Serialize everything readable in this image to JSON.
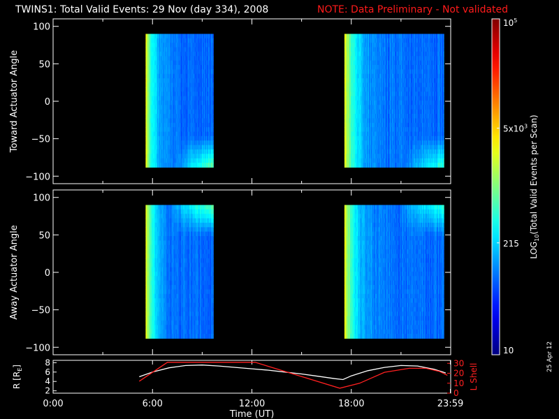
{
  "title": {
    "main": "TWINS1: Total Valid Events: 29 Nov (day 334), 2008",
    "note": "NOTE: Data Preliminary - Not validated"
  },
  "stamp": "25 Apr 12",
  "colors": {
    "background": "#000000",
    "axis": "#ffffff",
    "note": "#ff1b1b",
    "lshell": "#ff2020",
    "radius": "#ffffff"
  },
  "chart_data": [
    {
      "type": "heatmap",
      "name": "toward-panel",
      "ylabel": "Toward Actuator Angle",
      "ylim": [
        -110,
        110
      ],
      "yticks": [
        "100",
        "50",
        "0",
        "−50",
        "−100"
      ],
      "ytick_values": [
        100,
        50,
        0,
        -50,
        -100
      ],
      "xlim_hours": [
        0,
        24
      ],
      "angle_range": [
        -88,
        90
      ],
      "data_blocks_ut": [
        {
          "start": "5:35",
          "end": "9:40"
        },
        {
          "start": "17:35",
          "end": "23:35"
        }
      ]
    },
    {
      "type": "heatmap",
      "name": "away-panel",
      "ylabel": "Away Actuator Angle",
      "ylim": [
        -110,
        110
      ],
      "yticks": [
        "100",
        "50",
        "0",
        "−50",
        "−100"
      ],
      "ytick_values": [
        100,
        50,
        0,
        -50,
        -100
      ],
      "xlim_hours": [
        0,
        24
      ],
      "angle_range": [
        -88,
        90
      ],
      "data_blocks_ut": [
        {
          "start": "5:35",
          "end": "9:40"
        },
        {
          "start": "17:35",
          "end": "23:35"
        }
      ]
    },
    {
      "type": "line",
      "name": "orbit-panel",
      "ylabel": "R [R",
      "ylabel_sub": "E",
      "ylabel_end": "]",
      "yticks_left": [
        "8",
        "6",
        "4",
        "2"
      ],
      "ytick_left_values": [
        8,
        6,
        4,
        2
      ],
      "ylim_left": [
        1.5,
        8.5
      ],
      "ylabel_right": "L Shell",
      "yticks_right": [
        "30",
        "20",
        "10",
        "0"
      ],
      "ytick_right_values": [
        30,
        20,
        10,
        0
      ],
      "ylim_right": [
        0,
        33
      ],
      "xlabel": "Time (UT)",
      "xticks": [
        "0:00",
        "6:00",
        "12:00",
        "18:00",
        "23:59"
      ],
      "xtick_values": [
        0,
        6,
        12,
        18,
        23.98
      ],
      "series": [
        {
          "key": "r",
          "x": [
            5.2,
            6.0,
            7.0,
            8.0,
            9.0,
            10.0,
            11.0,
            12.0,
            13.0,
            14.0,
            15.0,
            16.0,
            17.0,
            17.5,
            18.0,
            19.0,
            20.0,
            21.0,
            22.0,
            23.0,
            23.7
          ],
          "values": [
            5.0,
            6.0,
            6.9,
            7.4,
            7.5,
            7.3,
            7.0,
            6.7,
            6.4,
            6.0,
            5.6,
            5.1,
            4.6,
            4.4,
            5.2,
            6.3,
            7.0,
            7.4,
            7.3,
            6.6,
            5.8
          ]
        },
        {
          "key": "l",
          "x": [
            5.2,
            6.9,
            12.2,
            17.3,
            18.5,
            20.0,
            21.5,
            22.5,
            23.3,
            23.8
          ],
          "values": [
            12,
            31,
            31,
            5,
            10,
            21,
            25,
            25,
            22,
            18
          ]
        }
      ]
    }
  ],
  "colorbar": {
    "label_main": "LOG",
    "label_sub": "10",
    "label_rest": "(Total Valid Events per Scan)",
    "ticks": [
      {
        "label": "10",
        "sup": "5",
        "value": 100000
      },
      {
        "label": "5x10",
        "sup": "3",
        "value": 5000
      },
      {
        "label": "215",
        "sup": "",
        "value": 215
      },
      {
        "label": "10",
        "sup": "",
        "value": 10
      }
    ]
  }
}
